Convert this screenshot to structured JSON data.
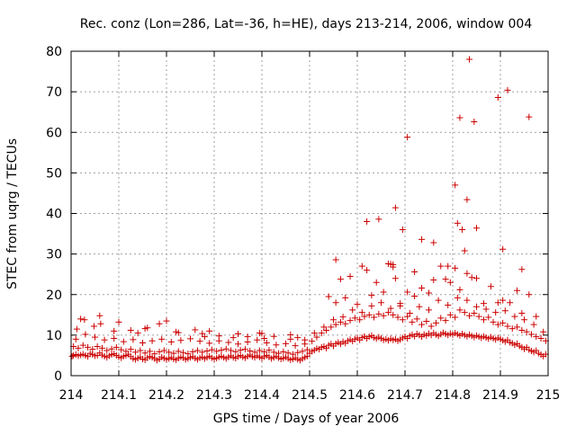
{
  "chart_data": {
    "type": "scatter",
    "title": "Rec. conz (Lon=286, Lat=-36, h=HE), days 213-214, 2006, window 004",
    "xlabel": "GPS time / Days of year 2006",
    "ylabel": "STEC from uqrg / TECUs",
    "xlim": [
      214,
      215
    ],
    "ylim": [
      0,
      80
    ],
    "xticks": [
      214,
      214.1,
      214.2,
      214.3,
      214.4,
      214.5,
      214.6,
      214.7,
      214.8,
      214.9,
      215
    ],
    "xtick_labels": [
      "214",
      "214.1",
      "214.2",
      "214.3",
      "214.4",
      "214.5",
      "214.6",
      "214.7",
      "214.8",
      "214.9",
      "215"
    ],
    "yticks": [
      0,
      10,
      20,
      30,
      40,
      50,
      60,
      70,
      80
    ],
    "ytick_labels": [
      "0",
      "10",
      "20",
      "30",
      "40",
      "50",
      "60",
      "70",
      "80"
    ],
    "grid": true,
    "marker": "plus",
    "color": "#cc0000",
    "series": [
      {
        "x": [
          214.002,
          214.005,
          214.01,
          214.015,
          214.02,
          214.025,
          214.03,
          214.035,
          214.04,
          214.045,
          214.05,
          214.055,
          214.06,
          214.065,
          214.07,
          214.075,
          214.08,
          214.085,
          214.09,
          214.095,
          214.1,
          214.105,
          214.11,
          214.115,
          214.12,
          214.125,
          214.13,
          214.135,
          214.14,
          214.145,
          214.15,
          214.155,
          214.16,
          214.165,
          214.17,
          214.175,
          214.18,
          214.185,
          214.19,
          214.195,
          214.2,
          214.205,
          214.21,
          214.215,
          214.22,
          214.225,
          214.23,
          214.235,
          214.24,
          214.245,
          214.25,
          214.255,
          214.26,
          214.265,
          214.27,
          214.275,
          214.28,
          214.285,
          214.29,
          214.295,
          214.3,
          214.305,
          214.31,
          214.315,
          214.32,
          214.325,
          214.33,
          214.335,
          214.34,
          214.345,
          214.35,
          214.355,
          214.36,
          214.365,
          214.37,
          214.375,
          214.38,
          214.385,
          214.39,
          214.395,
          214.4,
          214.405,
          214.41,
          214.415,
          214.42,
          214.425,
          214.43,
          214.435,
          214.44,
          214.445,
          214.45,
          214.455,
          214.46,
          214.465,
          214.47,
          214.475,
          214.48,
          214.485,
          214.49,
          214.495,
          214.005,
          214.015,
          214.025,
          214.035,
          214.045,
          214.055,
          214.065,
          214.075,
          214.085,
          214.095,
          214.105,
          214.115,
          214.125,
          214.135,
          214.145,
          214.155,
          214.165,
          214.175,
          214.185,
          214.195,
          214.205,
          214.215,
          214.225,
          214.235,
          214.245,
          214.255,
          214.265,
          214.275,
          214.285,
          214.295,
          214.305,
          214.315,
          214.325,
          214.335,
          214.345,
          214.355,
          214.365,
          214.375,
          214.385,
          214.395,
          214.405,
          214.415,
          214.425,
          214.435,
          214.445,
          214.455,
          214.465,
          214.475,
          214.485,
          214.495,
          214.01,
          214.03,
          214.05,
          214.07,
          214.09,
          214.11,
          214.13,
          214.15,
          214.17,
          214.19,
          214.21,
          214.23,
          214.25,
          214.27,
          214.29,
          214.31,
          214.33,
          214.35,
          214.37,
          214.39,
          214.41,
          214.43,
          214.45,
          214.47,
          214.49,
          214.012,
          214.028,
          214.048,
          214.062,
          214.09,
          214.125,
          214.14,
          214.155,
          214.185,
          214.2,
          214.225,
          214.26,
          214.275,
          214.29,
          214.31,
          214.35,
          214.37,
          214.395,
          214.405,
          214.425,
          214.46,
          214.475,
          214.49,
          214.02,
          214.06,
          214.1,
          214.16,
          214.22,
          214.28,
          214.34,
          214.4,
          214.46
        ],
        "y": [
          4.8,
          5.0,
          5.2,
          4.9,
          5.1,
          5.3,
          5.0,
          4.7,
          5.5,
          5.2,
          4.9,
          5.0,
          5.6,
          5.1,
          4.8,
          4.5,
          4.9,
          5.2,
          5.4,
          5.0,
          4.6,
          4.4,
          4.8,
          5.0,
          5.3,
          4.7,
          4.2,
          4.0,
          4.3,
          4.6,
          4.1,
          3.9,
          4.4,
          4.7,
          4.5,
          4.2,
          3.8,
          4.1,
          4.6,
          4.3,
          4.0,
          4.2,
          4.5,
          4.1,
          3.9,
          4.3,
          4.6,
          4.4,
          4.0,
          4.2,
          4.5,
          4.7,
          4.3,
          4.0,
          4.4,
          4.6,
          4.2,
          4.5,
          4.8,
          4.4,
          4.1,
          4.3,
          4.6,
          4.8,
          4.5,
          4.2,
          4.6,
          4.9,
          4.5,
          4.3,
          4.7,
          5.0,
          4.6,
          4.4,
          4.8,
          5.1,
          4.7,
          4.5,
          4.9,
          4.6,
          4.3,
          4.7,
          5.0,
          4.6,
          4.2,
          4.5,
          4.8,
          4.4,
          4.1,
          4.3,
          4.6,
          4.2,
          3.9,
          4.1,
          4.4,
          4.0,
          3.8,
          4.2,
          4.5,
          4.8,
          7.2,
          6.8,
          7.5,
          7.0,
          6.5,
          7.2,
          6.8,
          6.2,
          6.6,
          7.0,
          6.4,
          6.0,
          6.5,
          5.8,
          6.2,
          5.6,
          6.0,
          5.4,
          5.9,
          6.2,
          5.8,
          5.5,
          6.0,
          5.7,
          5.4,
          5.9,
          6.2,
          5.8,
          6.1,
          6.4,
          6.0,
          6.3,
          6.6,
          6.2,
          5.9,
          6.3,
          6.5,
          6.1,
          5.8,
          6.2,
          5.9,
          6.3,
          5.8,
          5.5,
          5.9,
          5.6,
          5.3,
          5.7,
          6.0,
          6.4,
          9.0,
          10.2,
          9.5,
          8.8,
          9.2,
          8.4,
          8.9,
          8.1,
          8.6,
          9.0,
          8.3,
          8.7,
          9.1,
          8.5,
          8.0,
          8.6,
          8.2,
          7.8,
          8.3,
          8.8,
          8.1,
          7.6,
          7.9,
          7.4,
          7.8,
          11.5,
          13.8,
          12.2,
          12.8,
          11.0,
          11.2,
          10.5,
          11.6,
          12.8,
          13.5,
          10.6,
          11.3,
          10.4,
          11.0,
          9.8,
          10.3,
          9.6,
          10.5,
          9.2,
          9.7,
          10.1,
          9.4,
          8.8,
          14.0,
          14.8,
          13.2,
          11.8,
          10.8,
          9.6,
          9.4,
          10.4,
          9.0
        ],
        "y_extra_note": ""
      },
      {
        "x": [
          214.5,
          214.505,
          214.51,
          214.515,
          214.52,
          214.525,
          214.53,
          214.535,
          214.54,
          214.545,
          214.55,
          214.555,
          214.56,
          214.565,
          214.57,
          214.575,
          214.58,
          214.585,
          214.59,
          214.595,
          214.6,
          214.605,
          214.61,
          214.615,
          214.62,
          214.625,
          214.63,
          214.635,
          214.64,
          214.645,
          214.65,
          214.655,
          214.66,
          214.665,
          214.67,
          214.675,
          214.68,
          214.685,
          214.69,
          214.695,
          214.7,
          214.705,
          214.71,
          214.715,
          214.72,
          214.725,
          214.73,
          214.735,
          214.74,
          214.745,
          214.75,
          214.755,
          214.76,
          214.765,
          214.77,
          214.775,
          214.78,
          214.785,
          214.79,
          214.795,
          214.8,
          214.805,
          214.81,
          214.815,
          214.82,
          214.825,
          214.83,
          214.835,
          214.84,
          214.845,
          214.85,
          214.855,
          214.86,
          214.865,
          214.87,
          214.875,
          214.88,
          214.885,
          214.89,
          214.895,
          214.9,
          214.905,
          214.91,
          214.915,
          214.92,
          214.925,
          214.93,
          214.935,
          214.94,
          214.945,
          214.95,
          214.955,
          214.96,
          214.965,
          214.97,
          214.975,
          214.98,
          214.985,
          214.99,
          214.995
        ],
        "y": [
          5.5,
          6.0,
          6.3,
          6.7,
          6.5,
          7.0,
          7.2,
          6.8,
          7.5,
          7.8,
          7.3,
          7.9,
          8.2,
          7.8,
          8.4,
          8.0,
          8.6,
          8.9,
          8.5,
          9.0,
          9.3,
          8.8,
          9.4,
          9.7,
          9.2,
          9.6,
          9.9,
          9.4,
          9.1,
          9.5,
          9.2,
          8.8,
          9.0,
          8.7,
          9.1,
          8.8,
          9.0,
          8.6,
          8.9,
          9.3,
          9.6,
          9.2,
          9.8,
          10.1,
          9.7,
          10.3,
          10.0,
          9.6,
          10.2,
          9.9,
          10.4,
          10.0,
          10.5,
          10.1,
          9.8,
          10.2,
          10.6,
          10.3,
          10.0,
          10.4,
          10.1,
          10.5,
          10.2,
          9.9,
          10.3,
          10.0,
          9.7,
          10.1,
          9.8,
          9.5,
          9.9,
          9.6,
          9.3,
          9.7,
          9.4,
          9.1,
          9.5,
          9.2,
          8.9,
          9.3,
          9.0,
          8.7,
          8.4,
          8.8,
          8.2,
          8.0,
          7.6,
          7.9,
          7.3,
          7.0,
          6.6,
          7.0,
          6.4,
          6.1,
          5.8,
          6.2,
          5.5,
          5.2,
          4.8,
          5.3
        ]
      },
      {
        "x": [
          214.505,
          214.515,
          214.525,
          214.535,
          214.545,
          214.555,
          214.565,
          214.575,
          214.585,
          214.595,
          214.605,
          214.615,
          214.625,
          214.635,
          214.645,
          214.655,
          214.665,
          214.675,
          214.685,
          214.695,
          214.705,
          214.715,
          214.725,
          214.735,
          214.745,
          214.755,
          214.765,
          214.775,
          214.785,
          214.795,
          214.805,
          214.815,
          214.825,
          214.835,
          214.845,
          214.855,
          214.865,
          214.875,
          214.885,
          214.895,
          214.905,
          214.915,
          214.925,
          214.935,
          214.945,
          214.955,
          214.965,
          214.975,
          214.985,
          214.995,
          214.51,
          214.53,
          214.55,
          214.57,
          214.59,
          214.61,
          214.63,
          214.65,
          214.67,
          214.69,
          214.71,
          214.73,
          214.75,
          214.77,
          214.79,
          214.81,
          214.83,
          214.85,
          214.87,
          214.89,
          214.91,
          214.93,
          214.95,
          214.97,
          214.99
        ],
        "y": [
          8.5,
          9.5,
          10.5,
          11.2,
          12.0,
          12.6,
          13.2,
          12.8,
          13.6,
          14.2,
          13.8,
          14.6,
          15.0,
          14.4,
          15.2,
          14.8,
          15.6,
          15.0,
          14.4,
          13.8,
          14.6,
          13.2,
          14.0,
          12.6,
          13.4,
          12.2,
          13.0,
          14.2,
          13.6,
          15.0,
          14.4,
          16.2,
          15.6,
          14.8,
          15.4,
          14.6,
          13.8,
          14.4,
          13.2,
          12.6,
          13.0,
          12.2,
          11.6,
          12.0,
          11.2,
          10.8,
          10.2,
          9.6,
          9.2,
          8.6,
          10.5,
          12.0,
          13.8,
          14.5,
          16.2,
          15.6,
          17.2,
          18.0,
          16.6,
          17.8,
          15.4,
          17.0,
          16.2,
          18.6,
          17.4,
          19.2,
          18.6,
          17.0,
          16.4,
          15.6,
          16.0,
          14.6,
          13.8,
          12.6,
          10.8
        ]
      },
      {
        "x": [
          214.54,
          214.555,
          214.565,
          214.575,
          214.585,
          214.6,
          214.61,
          214.62,
          214.63,
          214.64,
          214.655,
          214.665,
          214.675,
          214.68,
          214.69,
          214.705,
          214.72,
          214.735,
          214.75,
          214.76,
          214.775,
          214.785,
          214.795,
          214.805,
          214.815,
          214.83,
          214.84,
          214.85,
          214.865,
          214.88,
          214.895,
          214.905,
          214.92,
          214.935,
          214.945,
          214.96,
          214.975
        ],
        "y": [
          19.5,
          18.0,
          23.8,
          19.2,
          24.5,
          17.6,
          27.0,
          26.0,
          19.8,
          23.0,
          20.6,
          27.6,
          27.4,
          24.0,
          17.2,
          20.6,
          19.6,
          21.6,
          20.4,
          23.6,
          27.0,
          23.8,
          23.0,
          26.5,
          21.2,
          25.2,
          24.2,
          24.0,
          17.8,
          22.0,
          18.0,
          18.6,
          18.0,
          21.0,
          15.4,
          20.0,
          14.6
        ]
      },
      {
        "x": [
          214.555,
          214.62,
          214.645,
          214.67,
          214.675,
          214.68,
          214.695,
          214.705,
          214.72,
          214.735,
          214.76,
          214.79,
          214.805,
          214.81,
          214.815,
          214.82,
          214.825,
          214.83,
          214.835,
          214.845,
          214.85,
          214.895,
          214.905,
          214.915,
          214.945,
          214.96
        ],
        "y": [
          28.6,
          38.0,
          38.6,
          27.5,
          26.8,
          41.4,
          36.0,
          58.8,
          25.6,
          33.6,
          32.8,
          27.0,
          47.0,
          37.6,
          63.6,
          36.0,
          30.8,
          43.4,
          78.0,
          62.6,
          36.4,
          68.6,
          31.2,
          70.4,
          26.2,
          63.8
        ]
      }
    ]
  }
}
